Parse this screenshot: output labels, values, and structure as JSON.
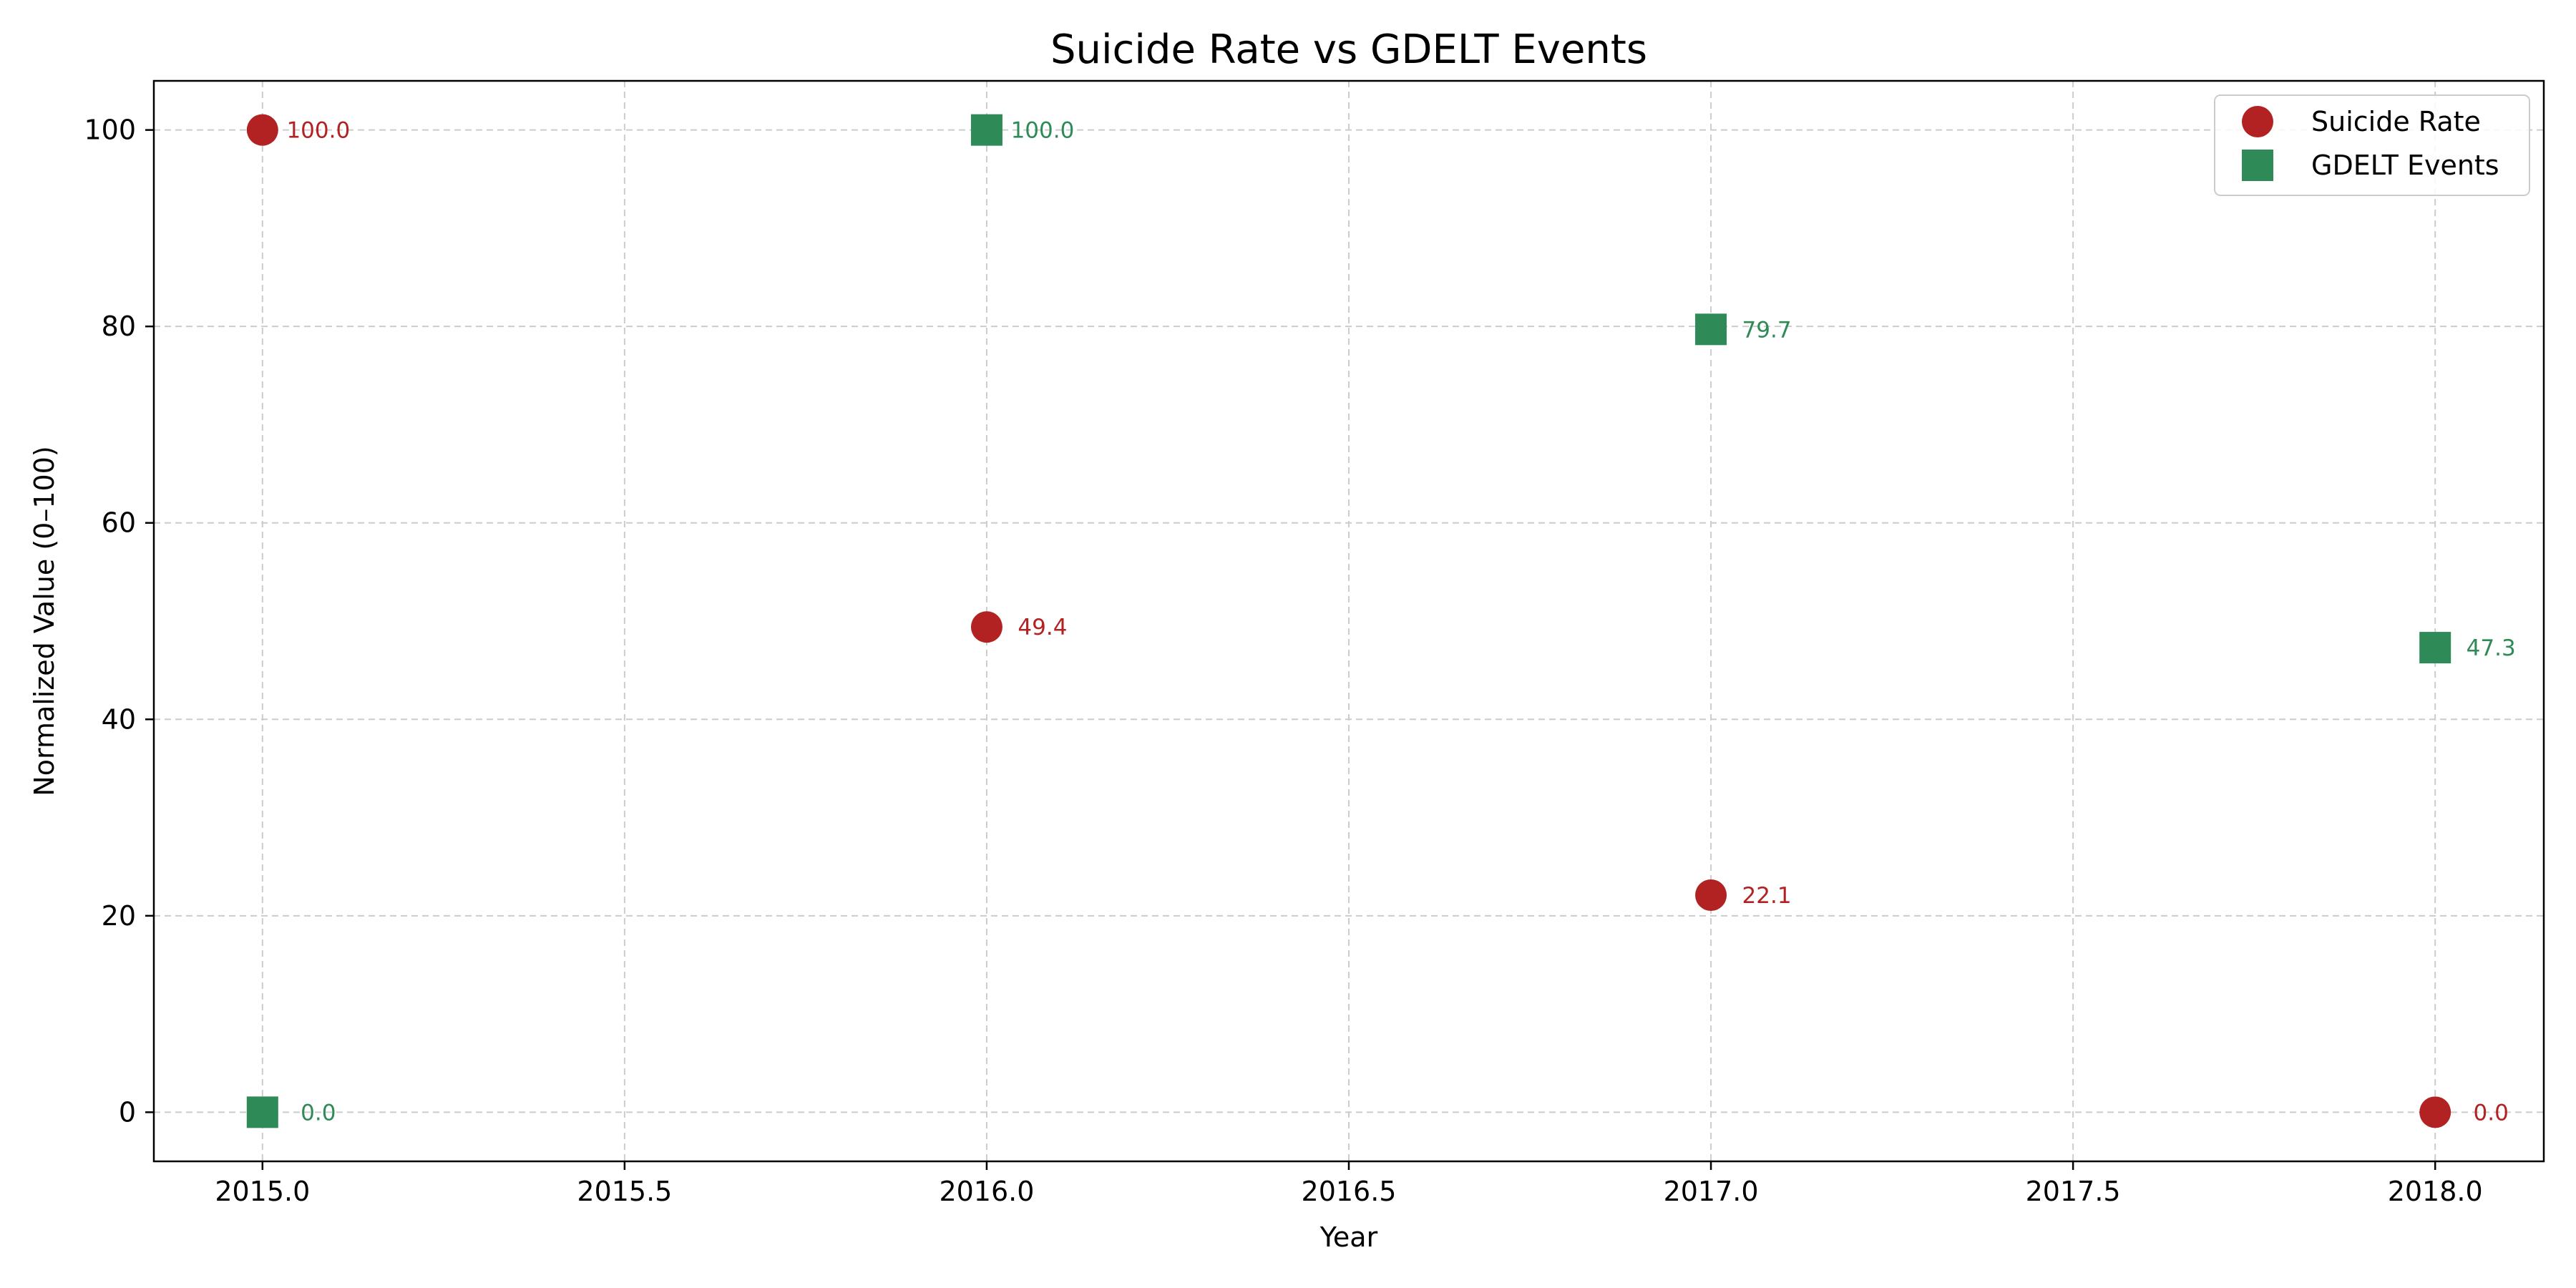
{
  "chart_data": {
    "type": "scatter",
    "title": "Suicide Rate vs GDELT Events",
    "xlabel": "Year",
    "ylabel": "Normalized Value (0–100)",
    "xlim": [
      2014.85,
      2018.15
    ],
    "ylim": [
      -5,
      105
    ],
    "xticks": [
      2015.0,
      2015.5,
      2016.0,
      2016.5,
      2017.0,
      2017.5,
      2018.0
    ],
    "xtick_labels": [
      "2015.0",
      "2015.5",
      "2016.0",
      "2016.5",
      "2017.0",
      "2017.5",
      "2018.0"
    ],
    "yticks": [
      0,
      20,
      40,
      60,
      80,
      100
    ],
    "ytick_labels": [
      "0",
      "20",
      "40",
      "60",
      "80",
      "100"
    ],
    "grid": true,
    "legend_position": "top-right",
    "series": [
      {
        "name": "Suicide Rate",
        "marker": "circle",
        "color": "#b22222",
        "x": [
          2015,
          2016,
          2017,
          2018
        ],
        "y": [
          100.0,
          49.4,
          22.1,
          0.0
        ],
        "labels": [
          "100.0",
          "49.4",
          "22.1",
          "0.0"
        ]
      },
      {
        "name": "GDELT Events",
        "marker": "square",
        "color": "#2e8b57",
        "x": [
          2015,
          2016,
          2017,
          2018
        ],
        "y": [
          0.0,
          100.0,
          79.7,
          47.3
        ],
        "labels": [
          "0.0",
          "100.0",
          "79.7",
          "47.3"
        ]
      }
    ]
  }
}
